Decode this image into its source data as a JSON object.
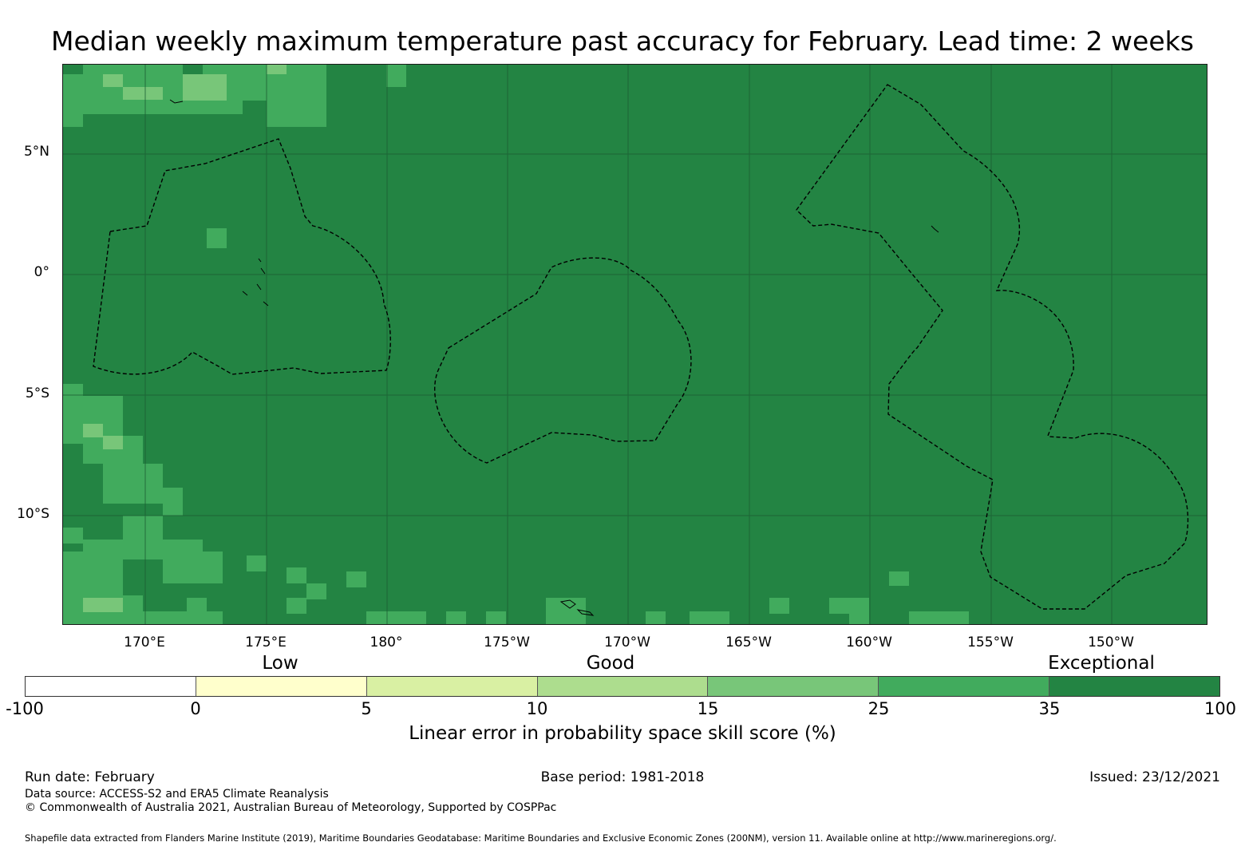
{
  "title": "Median weekly maximum temperature past accuracy for February. Lead time: 2 weeks",
  "map": {
    "lat_labels": [
      "5°N",
      "0°",
      "5°S",
      "10°S"
    ],
    "lon_labels": [
      "170°E",
      "175°E",
      "180°",
      "175°W",
      "170°W",
      "165°W",
      "160°W",
      "155°W",
      "150°W"
    ],
    "base_color": "#238443"
  },
  "colorbar": {
    "categories": [
      "Low",
      "Good",
      "Exceptional"
    ],
    "ticks": [
      "-100",
      "0",
      "5",
      "10",
      "15",
      "25",
      "35",
      "100"
    ],
    "colors": [
      "#ffffff",
      "#ffffcc",
      "#d9f0a3",
      "#addd8e",
      "#78c679",
      "#41ab5d",
      "#238443"
    ],
    "label": "Linear error in probability space skill score (%)"
  },
  "footer": {
    "run_date": "Run date: February",
    "base_period": "Base period: 1981-2018",
    "issued": "Issued: 23/12/2021",
    "data_source": "Data source: ACCESS-S2 and ERA5 Climate Reanalysis",
    "copyright": "© Commonwealth of Australia 2021, Australian Bureau of Meteorology, Supported by COSPPac",
    "shapefile": "Shapefile data extracted from Flanders Marine Institute (2019), Maritime Boundaries Geodatabase: Maritime Boundaries and Exclusive Economic Zones (200NM), version 11. Available online at http://www.marineregions.org/."
  }
}
